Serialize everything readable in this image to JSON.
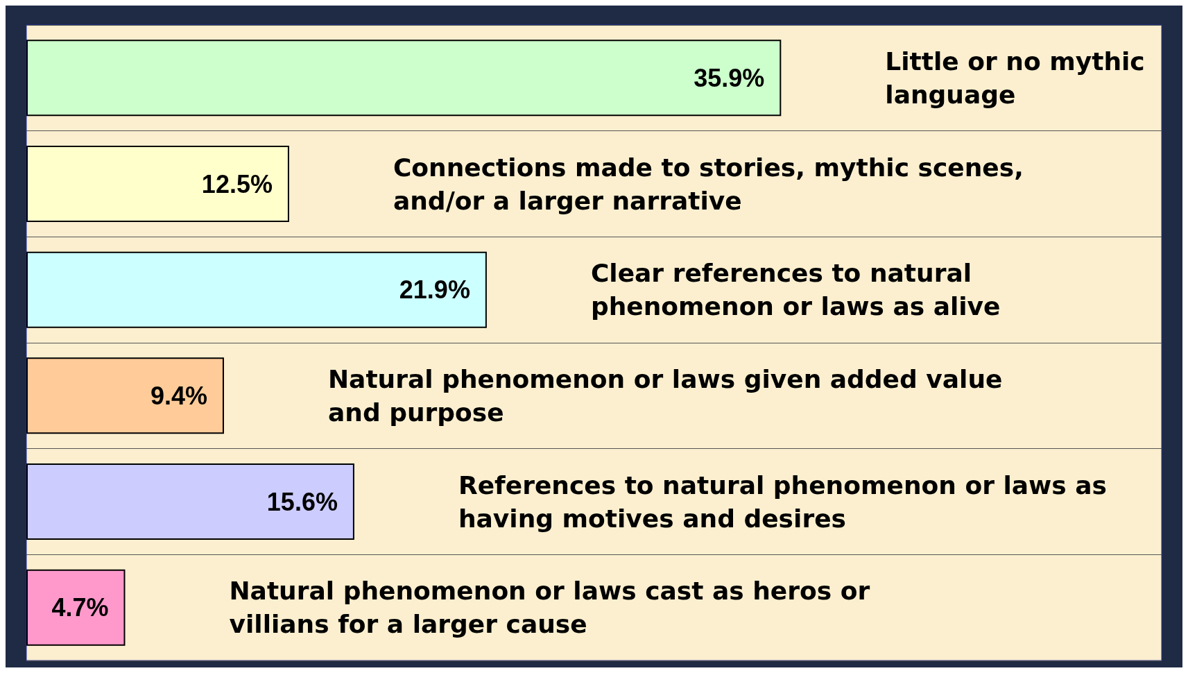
{
  "chart_data": {
    "type": "bar",
    "orientation": "horizontal",
    "categories": [
      "Little or no mythic language",
      "Connections made to stories, mythic scenes, and/or a larger narrative",
      "Clear references to natural phenomenon or laws as alive",
      "Natural phenomenon or laws given added value and purpose",
      "References to natural phenomenon or laws as having motives and desires",
      "Natural phenomenon or laws cast as heros or villians for a larger cause"
    ],
    "values": [
      35.9,
      12.5,
      21.9,
      9.4,
      15.6,
      4.7
    ],
    "value_labels": [
      "35.9%",
      "12.5%",
      "21.9%",
      "9.4%",
      "15.6%",
      "4.7%"
    ],
    "colors": [
      "#ccffcc",
      "#ffffcc",
      "#ccffff",
      "#ffcc99",
      "#ccccff",
      "#ff99cc"
    ],
    "xlim": [
      0,
      54
    ],
    "grid": "y"
  }
}
